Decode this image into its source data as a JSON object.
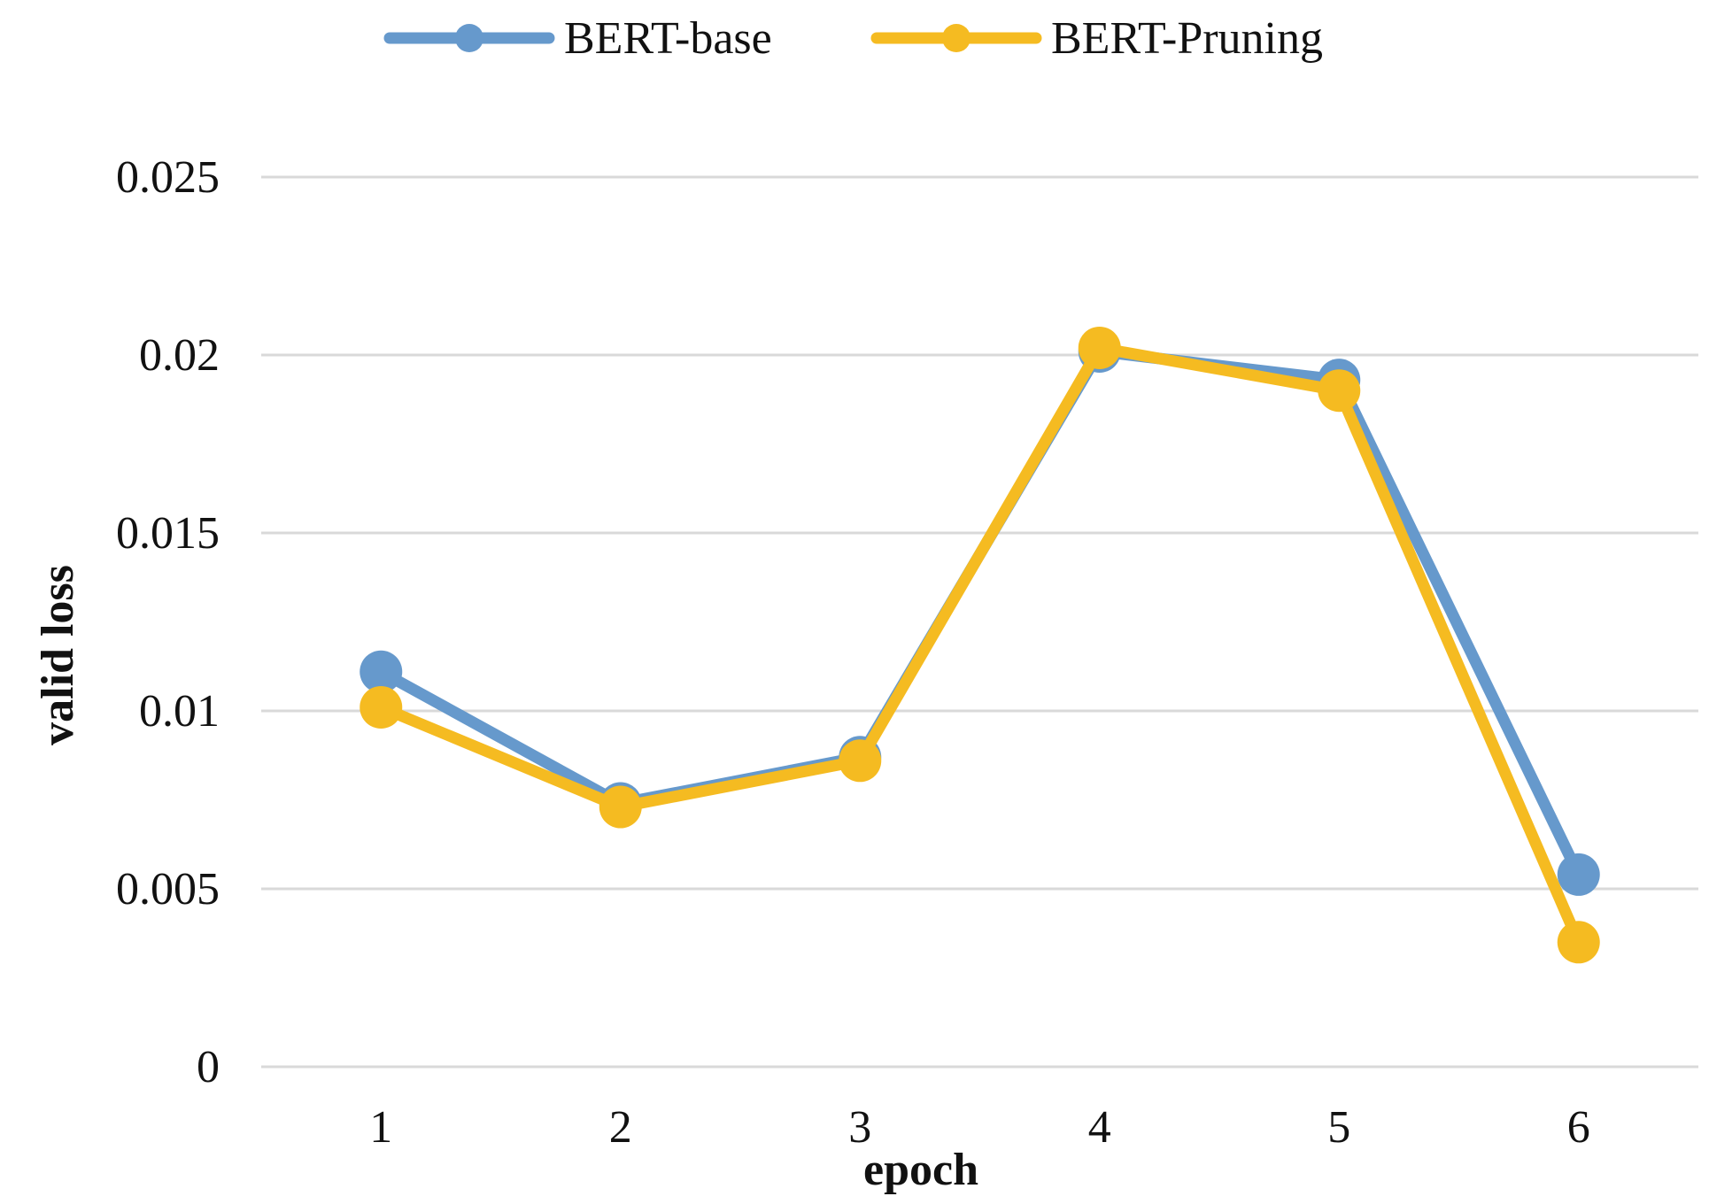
{
  "chart_data": {
    "type": "line",
    "title": "",
    "xlabel": "epoch",
    "ylabel": "valid loss",
    "categories": [
      "1",
      "2",
      "3",
      "4",
      "5",
      "6"
    ],
    "series": [
      {
        "name": "BERT-base",
        "color": "#6699cc",
        "values": [
          0.0111,
          0.0074,
          0.0087,
          0.0201,
          0.0193,
          0.0054
        ]
      },
      {
        "name": "BERT-Pruning",
        "color": "#f5bb21",
        "values": [
          0.0101,
          0.0073,
          0.0086,
          0.0202,
          0.019,
          0.0035
        ]
      }
    ],
    "ylim": [
      0,
      0.025
    ],
    "yticks": [
      "0",
      "0.005",
      "0.01",
      "0.015",
      "0.02",
      "0.025"
    ],
    "grid": true,
    "legend_position": "top-center",
    "gridline_color": "#d9d9d9"
  }
}
